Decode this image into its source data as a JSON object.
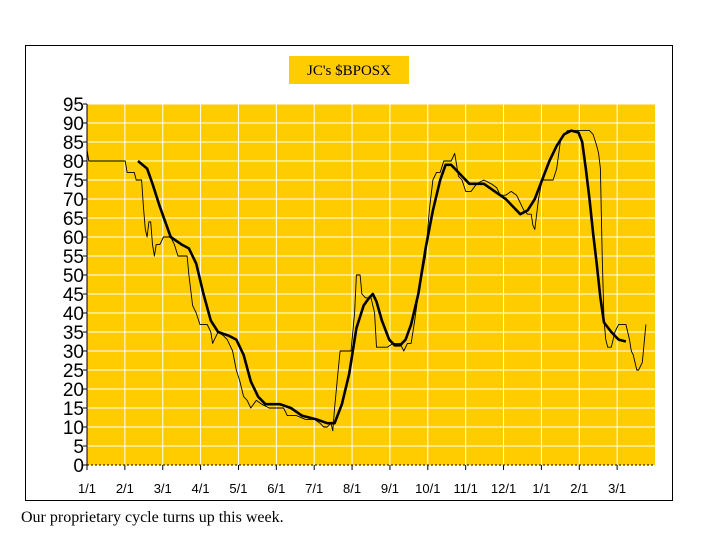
{
  "caption": "Our proprietary cycle turns up this week.",
  "colors": {
    "plot_bg": "#FFCC00",
    "title_bg": "#FFCC00",
    "grid": "#ffffff",
    "series": "#000000"
  },
  "chart_data": {
    "type": "line",
    "title": "JC's $BPOSX",
    "xlabel": "",
    "ylabel": "",
    "ylim": [
      0,
      95
    ],
    "yticks": [
      0,
      5,
      10,
      15,
      20,
      25,
      30,
      35,
      40,
      45,
      50,
      55,
      60,
      65,
      70,
      75,
      80,
      85,
      90,
      95
    ],
    "x_tick_labels": [
      "1/1",
      "2/1",
      "3/1",
      "4/1",
      "5/1",
      "6/1",
      "7/1",
      "8/1",
      "9/1",
      "10/1",
      "11/1",
      "12/1",
      "1/1",
      "2/1",
      "3/1"
    ],
    "grid": true,
    "legend": "none",
    "series": [
      {
        "style": "thin",
        "points": [
          [
            0,
            83
          ],
          [
            1,
            80
          ],
          [
            5,
            80
          ],
          [
            13,
            80
          ],
          [
            21,
            80
          ],
          [
            22,
            77
          ],
          [
            26,
            77
          ],
          [
            27,
            75
          ],
          [
            28,
            75
          ],
          [
            30,
            75
          ],
          [
            31,
            68
          ],
          [
            32,
            62
          ],
          [
            33,
            60
          ],
          [
            34,
            64
          ],
          [
            35,
            64
          ],
          [
            36,
            58
          ],
          [
            37,
            55
          ],
          [
            38,
            58
          ],
          [
            40,
            58
          ],
          [
            42,
            60
          ],
          [
            46,
            60
          ],
          [
            48,
            58
          ],
          [
            50,
            55
          ],
          [
            55,
            55
          ],
          [
            56,
            50
          ],
          [
            58,
            42
          ],
          [
            60,
            40
          ],
          [
            62,
            37
          ],
          [
            66,
            37
          ],
          [
            68,
            35
          ],
          [
            69,
            32
          ],
          [
            70,
            33
          ],
          [
            72,
            35
          ],
          [
            75,
            34
          ],
          [
            77,
            33
          ],
          [
            80,
            30
          ],
          [
            82,
            25
          ],
          [
            84,
            22
          ],
          [
            86,
            18
          ],
          [
            88,
            17
          ],
          [
            90,
            15
          ],
          [
            93,
            17
          ],
          [
            96,
            16
          ],
          [
            100,
            15
          ],
          [
            105,
            15
          ],
          [
            108,
            15
          ],
          [
            110,
            13
          ],
          [
            115,
            13
          ],
          [
            120,
            12
          ],
          [
            125,
            12
          ],
          [
            128,
            11
          ],
          [
            130,
            10
          ],
          [
            132,
            10
          ],
          [
            134,
            11
          ],
          [
            135,
            9
          ],
          [
            136,
            15
          ],
          [
            138,
            25
          ],
          [
            139,
            30
          ],
          [
            142,
            30
          ],
          [
            145,
            30
          ],
          [
            147,
            40
          ],
          [
            148,
            50
          ],
          [
            150,
            50
          ],
          [
            151,
            45
          ],
          [
            153,
            44
          ],
          [
            156,
            44
          ],
          [
            158,
            40
          ],
          [
            159,
            31
          ],
          [
            162,
            31
          ],
          [
            165,
            31
          ],
          [
            168,
            32
          ],
          [
            172,
            32
          ],
          [
            174,
            30
          ],
          [
            176,
            32
          ],
          [
            178,
            32
          ],
          [
            180,
            38
          ],
          [
            182,
            45
          ],
          [
            184,
            50
          ],
          [
            186,
            55
          ],
          [
            188,
            67
          ],
          [
            190,
            75
          ],
          [
            192,
            77
          ],
          [
            194,
            77
          ],
          [
            196,
            80
          ],
          [
            198,
            80
          ],
          [
            200,
            80
          ],
          [
            202,
            82
          ],
          [
            203,
            79
          ],
          [
            204,
            76
          ],
          [
            206,
            75
          ],
          [
            208,
            72
          ],
          [
            211,
            72
          ],
          [
            214,
            74
          ],
          [
            218,
            75
          ],
          [
            222,
            74
          ],
          [
            225,
            73
          ],
          [
            227,
            71
          ],
          [
            230,
            71
          ],
          [
            233,
            72
          ],
          [
            236,
            71
          ],
          [
            240,
            67
          ],
          [
            242,
            66
          ],
          [
            244,
            66
          ],
          [
            245,
            63
          ],
          [
            246,
            62
          ],
          [
            248,
            70
          ],
          [
            250,
            75
          ],
          [
            254,
            75
          ],
          [
            256,
            75
          ],
          [
            258,
            78
          ],
          [
            260,
            85
          ],
          [
            262,
            87
          ],
          [
            264,
            88
          ],
          [
            268,
            88
          ],
          [
            272,
            88
          ],
          [
            276,
            88
          ],
          [
            278,
            87
          ],
          [
            280,
            84
          ],
          [
            281,
            82
          ],
          [
            282,
            78
          ],
          [
            283,
            55
          ],
          [
            284,
            38
          ],
          [
            285,
            33
          ],
          [
            286,
            31
          ],
          [
            288,
            31
          ],
          [
            290,
            35
          ],
          [
            292,
            37
          ],
          [
            296,
            37
          ],
          [
            298,
            33
          ],
          [
            299,
            30
          ],
          [
            300,
            29
          ],
          [
            301,
            27
          ],
          [
            302,
            25
          ],
          [
            303,
            25
          ],
          [
            305,
            27
          ],
          [
            306,
            32
          ],
          [
            307,
            37
          ]
        ]
      },
      {
        "style": "thick",
        "points": [
          [
            28,
            80
          ],
          [
            33,
            78
          ],
          [
            36,
            74
          ],
          [
            40,
            68
          ],
          [
            46,
            60
          ],
          [
            52,
            58
          ],
          [
            56,
            57
          ],
          [
            60,
            53
          ],
          [
            64,
            45
          ],
          [
            68,
            38
          ],
          [
            72,
            35
          ],
          [
            78,
            34
          ],
          [
            82,
            33
          ],
          [
            86,
            29
          ],
          [
            90,
            22
          ],
          [
            94,
            18
          ],
          [
            98,
            16
          ],
          [
            106,
            16
          ],
          [
            112,
            15
          ],
          [
            118,
            13
          ],
          [
            126,
            12
          ],
          [
            132,
            11
          ],
          [
            136,
            11
          ],
          [
            140,
            16
          ],
          [
            144,
            24
          ],
          [
            148,
            36
          ],
          [
            152,
            42
          ],
          [
            155,
            44
          ],
          [
            157,
            45
          ],
          [
            159,
            43
          ],
          [
            162,
            38
          ],
          [
            166,
            33
          ],
          [
            169,
            31.5
          ],
          [
            172,
            31.5
          ],
          [
            175,
            33
          ],
          [
            178,
            37
          ],
          [
            182,
            45
          ],
          [
            186,
            57
          ],
          [
            190,
            67
          ],
          [
            194,
            75
          ],
          [
            197,
            79
          ],
          [
            200,
            79
          ],
          [
            204,
            77
          ],
          [
            210,
            74
          ],
          [
            218,
            74
          ],
          [
            224,
            72
          ],
          [
            230,
            70
          ],
          [
            234,
            68
          ],
          [
            238,
            66
          ],
          [
            242,
            67
          ],
          [
            246,
            70
          ],
          [
            250,
            75
          ],
          [
            254,
            80
          ],
          [
            258,
            84
          ],
          [
            262,
            87
          ],
          [
            266,
            88
          ],
          [
            270,
            87.5
          ],
          [
            272,
            85
          ],
          [
            274,
            78
          ],
          [
            276,
            70
          ],
          [
            278,
            61
          ],
          [
            280,
            53
          ],
          [
            282,
            44
          ],
          [
            284,
            37.5
          ],
          [
            288,
            35
          ],
          [
            292,
            33
          ],
          [
            296,
            32.5
          ]
        ]
      }
    ]
  }
}
